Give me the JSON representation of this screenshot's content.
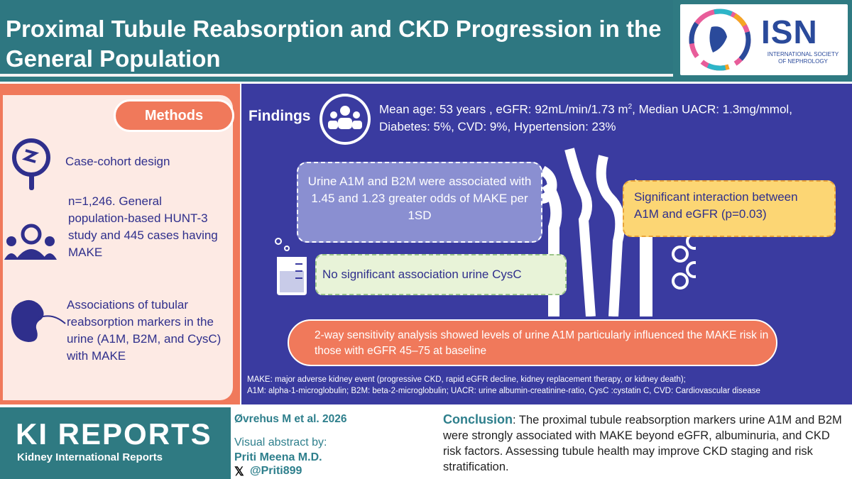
{
  "header": {
    "title": "Proximal Tubule Reabsorption and CKD Progression in the General Population",
    "logo_text": "ISN",
    "logo_subtitle": "INTERNATIONAL SOCIETY OF NEPHROLOGY"
  },
  "methods": {
    "label": "Methods",
    "items": [
      "Case-cohort design",
      "n=1,246. General population-based HUNT-3 study and 445 cases having MAKE",
      "Associations of tubular reabsorption markers in the urine (A1M, B2M, and CysC) with MAKE"
    ]
  },
  "findings": {
    "label": "Findings",
    "stats_line1": "Mean age: 53 years , eGFR: 92mL/min/1.73 m",
    "stats_sup": "2",
    "stats_line1b": ", Median UACR: 1.3mg/mmol,",
    "stats_line2": "Diabetes: 5%, CVD: 9%, Hypertension: 23%",
    "a1m_b2m": "Urine A1M and B2M were associated with 1.45 and 1.23 greater odds of MAKE per 1SD",
    "interaction": "Significant interaction between A1M and eGFR (p=0.03)",
    "cysc": "No significant association urine CysC",
    "sensitivity": "2-way sensitivity analysis showed levels of urine A1M particularly influenced the MAKE risk in those with eGFR 45–75 at baseline",
    "footnote_1": "MAKE: major adverse kidney event (progressive CKD, rapid eGFR decline, kidney replacement therapy, or kidney death);",
    "footnote_2": "A1M: alpha-1-microglobulin; B2M: beta-2-microglobulin; UACR: urine albumin-creatinine-ratio, CysC :cystatin C, CVD: Cardiovascular disease"
  },
  "footer": {
    "journal": "KI REPORTS",
    "journal_sub": "Kidney International Reports",
    "author": "Øvrehus M et al. 2026",
    "visual_by": "Visual abstract by:",
    "visual_name": "Priti Meena M.D.",
    "visual_handle": "@Priti899",
    "conclusion_label": "Conclusion",
    "conclusion_text": ": The proximal tubule reabsorption markers urine A1M and B2M were strongly associated with MAKE beyond eGFR, albuminuria, and CKD risk factors. Assessing tubule health may improve CKD staging and risk stratification."
  },
  "colors": {
    "teal": "#2e7781",
    "coral": "#f0795b",
    "navy": "#3a3ba0",
    "yellow": "#fcd674"
  }
}
